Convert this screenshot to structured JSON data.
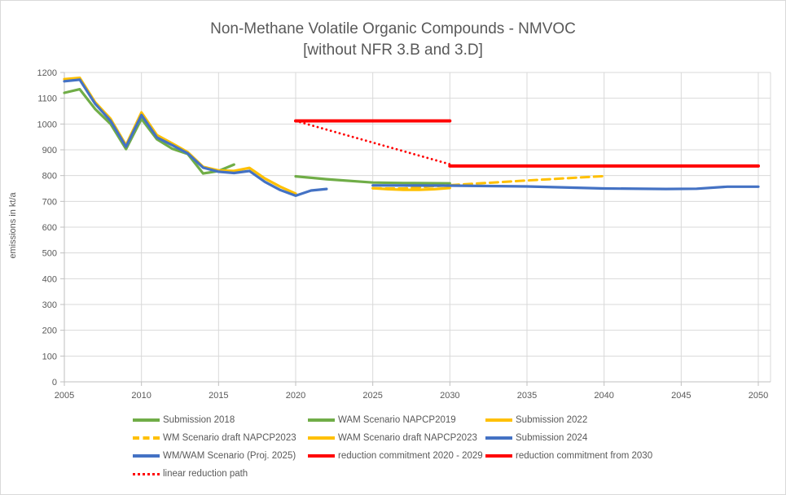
{
  "figure": {
    "title": "Non-Methane Volatile Organic Compounds - NMVOC",
    "subtitle": "[without NFR 3.B and 3.D]",
    "ylabel": "emissions in kt/a"
  },
  "colors": {
    "green": "#70AD47",
    "yellow": "#FFC000",
    "blue": "#4472C4",
    "red": "#FF0000",
    "grid": "#D9D9D9",
    "axis_line": "#BFBFBF",
    "tick_text": "#595959",
    "title_text": "#595959"
  },
  "chart_data": {
    "type": "line",
    "title": "Non-Methane Volatile Organic Compounds - NMVOC",
    "subtitle": "[without NFR 3.B and 3.D]",
    "xlabel": "",
    "ylabel": "emissions in kt/a",
    "xlim": [
      2005,
      2050
    ],
    "ylim": [
      0,
      1200
    ],
    "x_ticks": [
      2005,
      2010,
      2015,
      2020,
      2025,
      2030,
      2035,
      2040,
      2045,
      2050
    ],
    "y_ticks": [
      0,
      100,
      200,
      300,
      400,
      500,
      600,
      700,
      800,
      900,
      1000,
      1100,
      1200
    ],
    "grid": true,
    "legend_position": "bottom",
    "series": [
      {
        "name": "Submission 2018",
        "color": "#70AD47",
        "style": "solid",
        "width": 3.2,
        "points": [
          [
            2005,
            1121
          ],
          [
            2006,
            1135
          ],
          [
            2007,
            1058
          ],
          [
            2008,
            1000
          ],
          [
            2009,
            903
          ],
          [
            2010,
            1020
          ],
          [
            2011,
            941
          ],
          [
            2012,
            904
          ],
          [
            2013,
            884
          ],
          [
            2014,
            808
          ],
          [
            2015,
            818
          ],
          [
            2016,
            843
          ]
        ]
      },
      {
        "name": "WAM Scenario NAPCP2019",
        "color": "#70AD47",
        "style": "solid",
        "width": 3.2,
        "points": [
          [
            2020,
            797
          ],
          [
            2022,
            786
          ],
          [
            2025,
            773
          ],
          [
            2027,
            771
          ],
          [
            2030,
            770
          ]
        ]
      },
      {
        "name": "Submission 2022",
        "color": "#FFC000",
        "style": "solid",
        "width": 3.2,
        "points": [
          [
            2005,
            1174
          ],
          [
            2006,
            1179
          ],
          [
            2007,
            1084
          ],
          [
            2008,
            1020
          ],
          [
            2009,
            918
          ],
          [
            2010,
            1045
          ],
          [
            2011,
            957
          ],
          [
            2012,
            925
          ],
          [
            2013,
            891
          ],
          [
            2014,
            834
          ],
          [
            2015,
            820
          ],
          [
            2016,
            818
          ],
          [
            2017,
            830
          ],
          [
            2018,
            789
          ],
          [
            2019,
            757
          ],
          [
            2020,
            730
          ]
        ]
      },
      {
        "name": "WM Scenario draft NAPCP2023",
        "color": "#FFC000",
        "style": "dashed",
        "width": 3,
        "points": [
          [
            2025,
            751
          ],
          [
            2027,
            750
          ],
          [
            2030,
            763
          ],
          [
            2035,
            781
          ],
          [
            2040,
            798
          ]
        ]
      },
      {
        "name": "WAM Scenario draft NAPCP2023",
        "color": "#FFC000",
        "style": "solid",
        "width": 3.2,
        "points": [
          [
            2025,
            751
          ],
          [
            2026,
            747
          ],
          [
            2027,
            745
          ],
          [
            2028,
            745
          ],
          [
            2029,
            747
          ],
          [
            2030,
            752
          ]
        ]
      },
      {
        "name": "Submission 2024",
        "color": "#4472C4",
        "style": "solid",
        "width": 3.2,
        "points": [
          [
            2005,
            1166
          ],
          [
            2006,
            1172
          ],
          [
            2007,
            1078
          ],
          [
            2008,
            1012
          ],
          [
            2009,
            912
          ],
          [
            2010,
            1035
          ],
          [
            2011,
            948
          ],
          [
            2012,
            918
          ],
          [
            2013,
            886
          ],
          [
            2014,
            831
          ],
          [
            2015,
            815
          ],
          [
            2016,
            810
          ],
          [
            2017,
            818
          ],
          [
            2018,
            776
          ],
          [
            2019,
            744
          ],
          [
            2020,
            722
          ],
          [
            2021,
            742
          ],
          [
            2022,
            748
          ]
        ]
      },
      {
        "name": "WM/WAM Scenario (Proj. 2025)",
        "color": "#4472C4",
        "style": "solid",
        "width": 3.2,
        "points": [
          [
            2025,
            762
          ],
          [
            2030,
            761
          ],
          [
            2035,
            758
          ],
          [
            2040,
            750
          ],
          [
            2044,
            748
          ],
          [
            2046,
            749
          ],
          [
            2048,
            757
          ],
          [
            2050,
            757
          ]
        ]
      },
      {
        "name": "reduction commitment 2020 - 2029",
        "color": "#FF0000",
        "style": "solid",
        "width": 4,
        "points": [
          [
            2020,
            1012
          ],
          [
            2030,
            1012
          ]
        ]
      },
      {
        "name": "reduction commitment from 2030",
        "color": "#FF0000",
        "style": "solid",
        "width": 4,
        "points": [
          [
            2030,
            837
          ],
          [
            2050,
            837
          ]
        ]
      },
      {
        "name": "linear reduction path",
        "color": "#FF0000",
        "style": "dotted",
        "width": 2.8,
        "points": [
          [
            2020,
            1012
          ],
          [
            2030,
            844
          ]
        ]
      }
    ]
  }
}
